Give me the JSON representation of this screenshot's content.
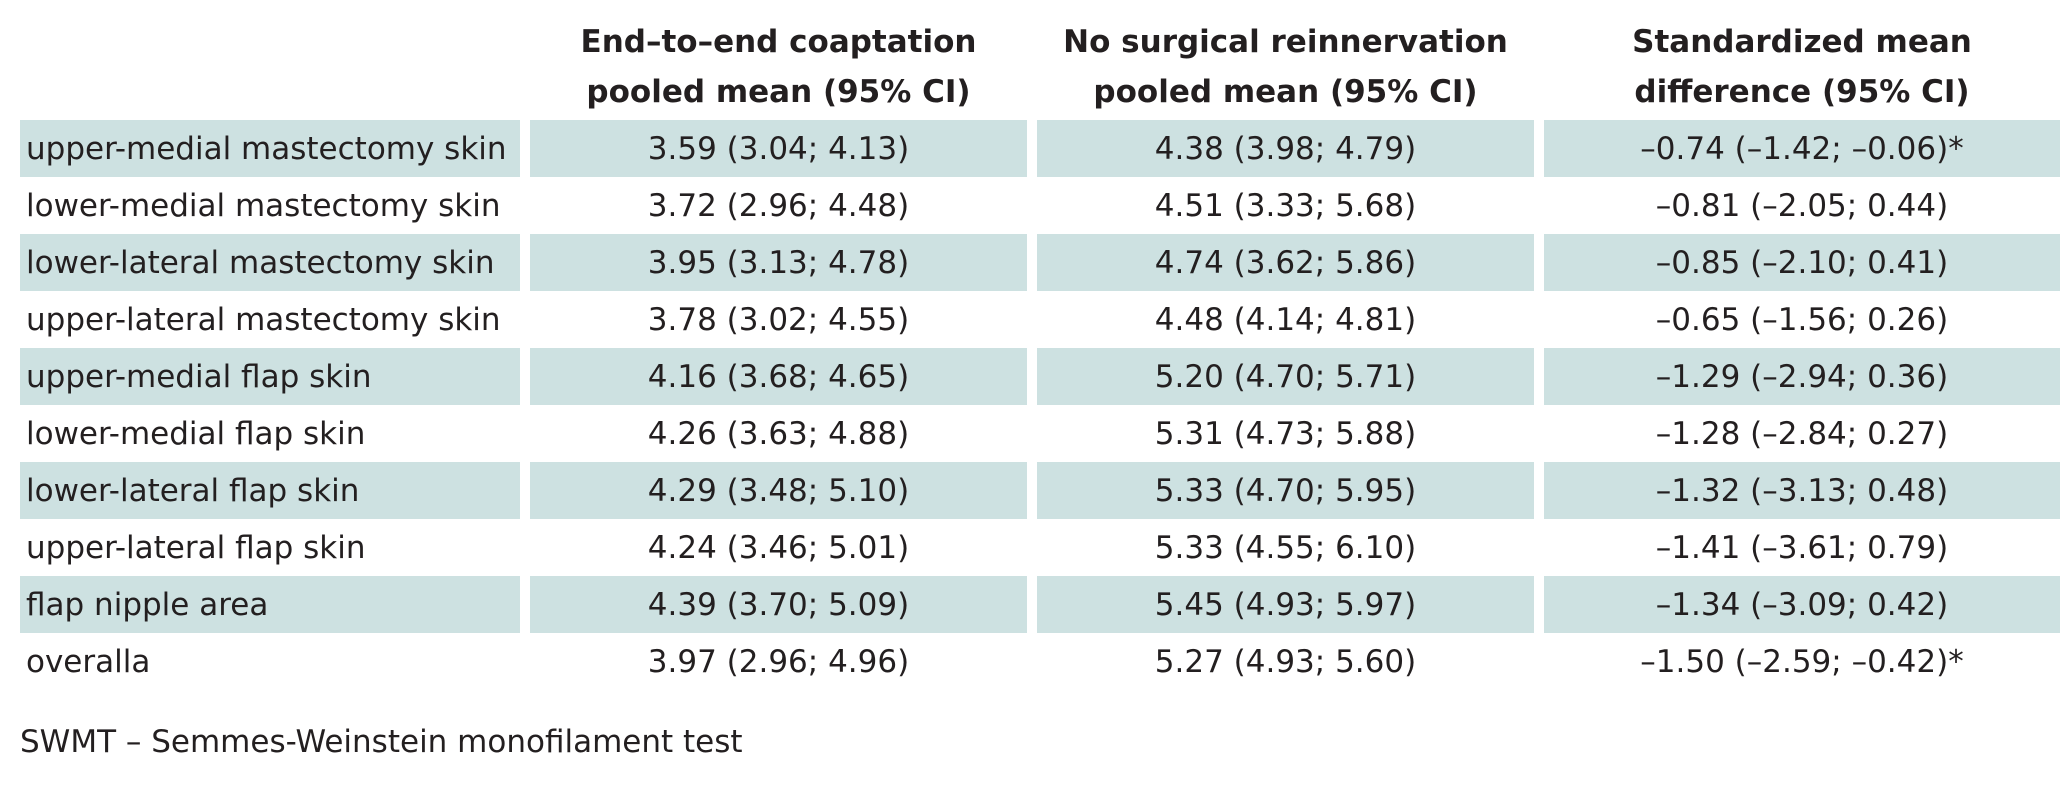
{
  "table": {
    "headers": [
      {
        "line1": "",
        "line2": ""
      },
      {
        "line1": "End–to–end coaptation",
        "line2": "pooled mean (95% CI)"
      },
      {
        "line1": "No surgical reinnervation",
        "line2": "pooled mean (95% CI)"
      },
      {
        "line1": "Standardized mean",
        "line2": "difference (95% CI)"
      }
    ],
    "rows": [
      {
        "region": "upper-medial mastectomy skin",
        "e2e": "3.59 (3.04; 4.13)",
        "none": "4.38 (3.98; 4.79)",
        "smd": "–0.74 (–1.42; –0.06)*",
        "shaded": true
      },
      {
        "region": "lower-medial mastectomy skin",
        "e2e": "3.72 (2.96; 4.48)",
        "none": "4.51 (3.33; 5.68)",
        "smd": "–0.81 (–2.05; 0.44)",
        "shaded": false
      },
      {
        "region": "lower-lateral mastectomy skin",
        "e2e": "3.95 (3.13; 4.78)",
        "none": "4.74 (3.62; 5.86)",
        "smd": "–0.85 (–2.10; 0.41)",
        "shaded": true
      },
      {
        "region": "upper-lateral mastectomy skin",
        "e2e": "3.78 (3.02; 4.55)",
        "none": "4.48 (4.14; 4.81)",
        "smd": "–0.65 (–1.56; 0.26)",
        "shaded": false
      },
      {
        "region": "upper-medial flap skin",
        "e2e": "4.16 (3.68; 4.65)",
        "none": "5.20 (4.70; 5.71)",
        "smd": "–1.29 (–2.94; 0.36)",
        "shaded": true
      },
      {
        "region": "lower-medial flap skin",
        "e2e": "4.26 (3.63; 4.88)",
        "none": "5.31 (4.73; 5.88)",
        "smd": "–1.28 (–2.84; 0.27)",
        "shaded": false
      },
      {
        "region": "lower-lateral flap skin",
        "e2e": "4.29 (3.48; 5.10)",
        "none": "5.33 (4.70; 5.95)",
        "smd": "–1.32 (–3.13; 0.48)",
        "shaded": true
      },
      {
        "region": "upper-lateral flap skin",
        "e2e": "4.24 (3.46; 5.01)",
        "none": "5.33 (4.55; 6.10)",
        "smd": "–1.41 (–3.61; 0.79)",
        "shaded": false
      },
      {
        "region": "flap nipple area",
        "e2e": "4.39 (3.70; 5.09)",
        "none": "5.45 (4.93; 5.97)",
        "smd": "–1.34 (–3.09; 0.42)",
        "shaded": true
      },
      {
        "region": "overalla",
        "e2e": "3.97 (2.96; 4.96)",
        "none": "5.27 (4.93; 5.60)",
        "smd": "–1.50 (–2.59; –0.42)*",
        "shaded": false
      }
    ],
    "shade_color": "#cde1e1"
  },
  "footnote": "SWMT – Semmes-Weinstein monofilament test"
}
